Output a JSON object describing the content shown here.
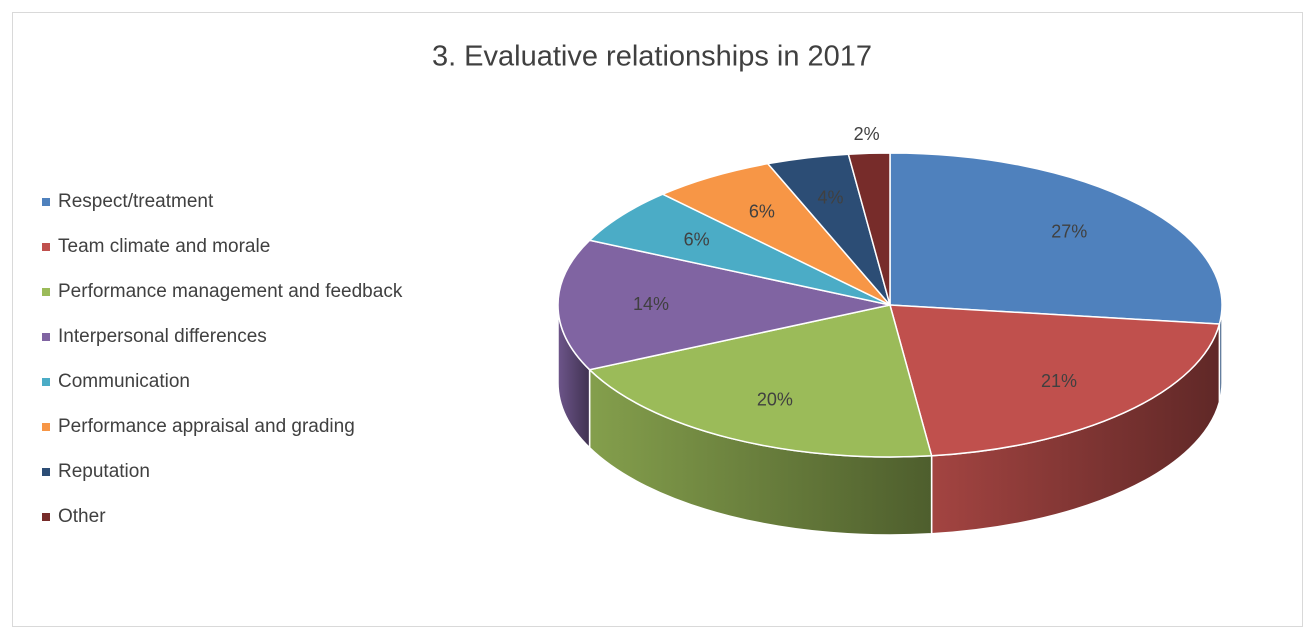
{
  "chart_data": {
    "type": "pie",
    "title": "3. Evaluative relationships in 2017",
    "categories": [
      "Respect/treatment",
      "Team climate and morale",
      "Performance management and feedback",
      "Interpersonal differences",
      "Communication",
      "Performance appraisal and grading",
      "Reputation",
      "Other"
    ],
    "values": [
      27,
      21,
      20,
      14,
      6,
      6,
      4,
      2
    ],
    "value_labels": [
      "27%",
      "21%",
      "20%",
      "14%",
      "6%",
      "6%",
      "4%",
      "2%"
    ],
    "colors": [
      "#4f81bd",
      "#c0504d",
      "#9bbb59",
      "#8064a2",
      "#4bacc6",
      "#f79646",
      "#2c4d75",
      "#772c2a"
    ],
    "legend": "left"
  }
}
